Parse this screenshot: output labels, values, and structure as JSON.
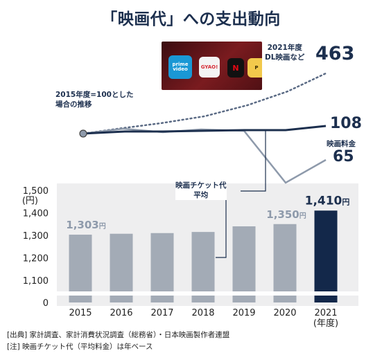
{
  "title": "「映画代」への支出動向",
  "line_chart": {
    "base_label": "2015年度=100とした\n場合の推移",
    "series": [
      {
        "name": "2021年度\nDL映画など",
        "end_value": "463",
        "style": "dotted",
        "color": "#5a6a84"
      },
      {
        "name": "",
        "end_value": "108",
        "style": "solid",
        "color": "#1c2f4e"
      },
      {
        "name": "映画料金",
        "end_value": "65",
        "style": "solid",
        "color": "#8e9aab"
      }
    ]
  },
  "photo_apps": [
    "prime video",
    "GYAO!",
    "NETFLIX",
    "Paravi"
  ],
  "annotation": "映画チケット代\n平均",
  "chart_data": {
    "type": "bar",
    "categories": [
      "2015",
      "2016",
      "2017",
      "2018",
      "2019",
      "2020",
      "2021\n(年度)"
    ],
    "values": [
      1303,
      1307,
      1310,
      1315,
      1340,
      1350,
      1410
    ],
    "ylim": [
      0,
      1500
    ],
    "y_axis_break": true,
    "ytick_labels": [
      "0",
      "1,100",
      "1,200",
      "1,300",
      "1,400",
      "1,500\n(円)"
    ],
    "data_labels": [
      {
        "index": 0,
        "value": "1,303",
        "unit": "円"
      },
      {
        "index": 5,
        "value": "1,350",
        "unit": "円"
      },
      {
        "index": 6,
        "value": "1,410",
        "unit": "円"
      }
    ],
    "colors": {
      "bar": "#a3abb6",
      "highlight": "#13284a",
      "plot_bg": "#eeeeef"
    }
  },
  "notes": [
    "[出典] 家計調査、家計消費状況調査（総務省）・日本映画製作者連盟",
    "[注] 映画チケット代（平均料金）は年ベース"
  ]
}
